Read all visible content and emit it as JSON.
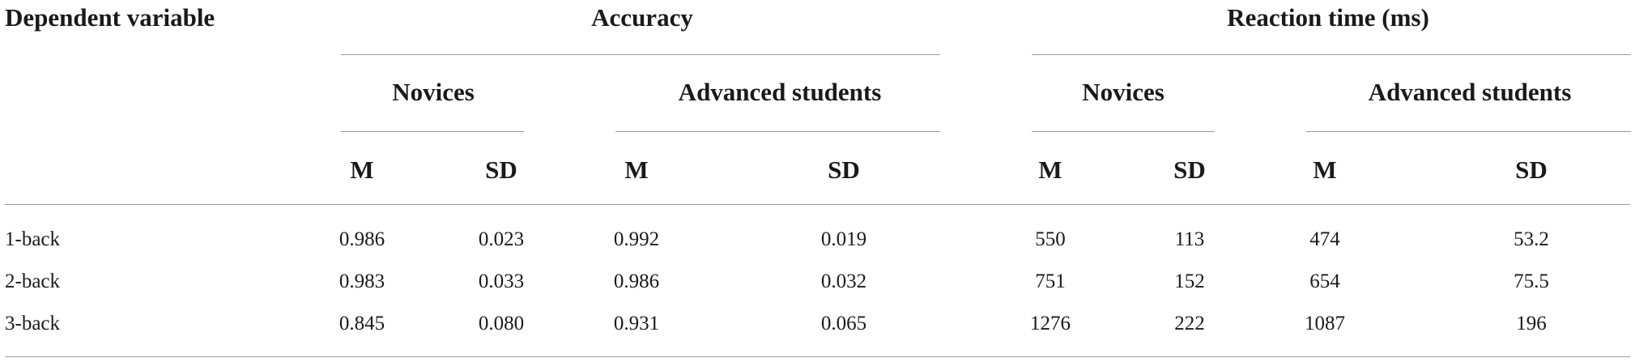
{
  "header": {
    "dependent_variable": "Dependent variable",
    "groups": [
      {
        "label": "Accuracy",
        "subgroups": [
          {
            "label": "Novices",
            "cols": [
              "M",
              "SD"
            ]
          },
          {
            "label": "Advanced students",
            "cols": [
              "M",
              "SD"
            ]
          }
        ]
      },
      {
        "label": "Reaction time (ms)",
        "subgroups": [
          {
            "label": "Novices",
            "cols": [
              "M",
              "SD"
            ]
          },
          {
            "label": "Advanced students",
            "cols": [
              "M",
              "SD"
            ]
          }
        ]
      }
    ]
  },
  "rows": [
    {
      "label": "1-back",
      "values": [
        "0.986",
        "0.023",
        "0.992",
        "0.019",
        "550",
        "113",
        "474",
        "53.2"
      ]
    },
    {
      "label": "2-back",
      "values": [
        "0.983",
        "0.033",
        "0.986",
        "0.032",
        "751",
        "152",
        "654",
        "75.5"
      ]
    },
    {
      "label": "3-back",
      "values": [
        "0.845",
        "0.080",
        "0.931",
        "0.065",
        "1276",
        "222",
        "1087",
        "196"
      ]
    }
  ]
}
